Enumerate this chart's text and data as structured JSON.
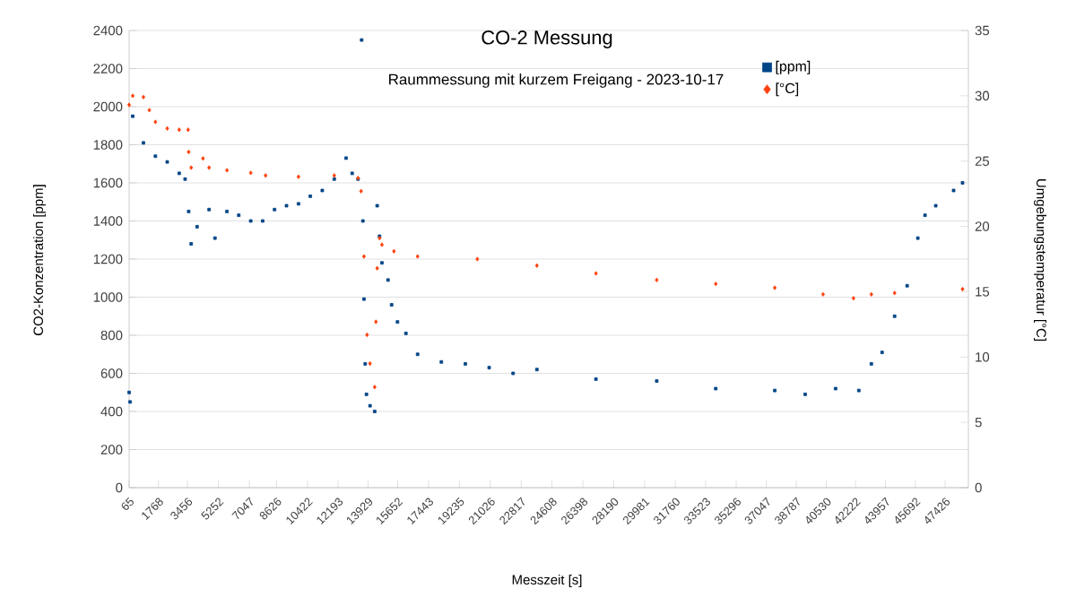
{
  "chart_data": {
    "type": "scatter",
    "title": "CO-2 Messung",
    "subtitle": "Raummessung mit kurzem Freigang - 2023-10-17",
    "xlabel": "Messzeit [s]",
    "ylabel": "CO2-Konzentration [ppm]",
    "y2label": "Umgebungstemperatur [°C]",
    "xlim": [
      65,
      48775
    ],
    "xticks": [
      65,
      1768,
      3456,
      5252,
      7047,
      8626,
      10422,
      12193,
      13929,
      15652,
      17443,
      19235,
      21026,
      22817,
      24608,
      26398,
      28190,
      29981,
      31760,
      33523,
      35296,
      37047,
      38787,
      40530,
      42222,
      43957,
      45692,
      47426
    ],
    "ylim": [
      0,
      2400
    ],
    "yticks": [
      0,
      200,
      400,
      600,
      800,
      1000,
      1200,
      1400,
      1600,
      1800,
      2000,
      2200,
      2400
    ],
    "y2lim": [
      0,
      35
    ],
    "y2ticks": [
      0,
      5,
      10,
      15,
      20,
      25,
      30,
      35
    ],
    "grid": "y",
    "legend": "top right",
    "series": [
      {
        "name": "[ppm]",
        "color": "#004586",
        "marker": "square",
        "axis": "y",
        "x": [
          65,
          120,
          273,
          895,
          1591,
          2276,
          2971,
          3314,
          3521,
          3667,
          4009,
          4705,
          5047,
          5743,
          6428,
          7123,
          7816,
          8504,
          9199,
          9895,
          10580,
          11275,
          11971,
          12656,
          13009,
          13351,
          13559,
          13632,
          13694,
          13767,
          13839,
          14047,
          14317,
          14462,
          14600,
          14738,
          15091,
          15299,
          15641,
          16129,
          16808,
          18189,
          19579,
          20960,
          22350,
          23731,
          27157,
          30686,
          34111,
          37537,
          39301,
          41066,
          42415,
          43142,
          43764,
          44491,
          45218,
          45840,
          46256,
          46878,
          47916,
          48434
        ],
        "values": [
          500,
          450,
          1950,
          1810,
          1740,
          1710,
          1650,
          1620,
          1450,
          1280,
          1370,
          1460,
          1310,
          1450,
          1430,
          1400,
          1400,
          1460,
          1480,
          1490,
          1530,
          1560,
          1620,
          1730,
          1650,
          1620,
          2350,
          1400,
          990,
          650,
          490,
          430,
          400,
          1480,
          1320,
          1180,
          1090,
          960,
          870,
          810,
          700,
          660,
          650,
          630,
          600,
          620,
          570,
          560,
          520,
          510,
          490,
          520,
          510,
          650,
          710,
          900,
          1060,
          1310,
          1430,
          1480,
          1560,
          1600
        ]
      },
      {
        "name": "[°C]",
        "color": "#ff420e",
        "marker": "diamond",
        "axis": "y2",
        "x": [
          65,
          273,
          895,
          1238,
          1591,
          2276,
          2971,
          3490,
          3521,
          3667,
          4352,
          4705,
          5743,
          7123,
          7985,
          9895,
          11971,
          13351,
          13527,
          13694,
          13870,
          14047,
          14317,
          14389,
          14462,
          14600,
          14738,
          15434,
          16808,
          20275,
          23731,
          27157,
          30686,
          34111,
          37537,
          40339,
          42104,
          43142,
          44491,
          48434
        ],
        "values": [
          29.3,
          30.0,
          29.9,
          28.9,
          28.0,
          27.5,
          27.4,
          27.4,
          25.7,
          24.5,
          25.2,
          24.5,
          24.3,
          24.1,
          23.9,
          23.8,
          23.9,
          23.7,
          22.7,
          17.7,
          11.7,
          9.5,
          7.7,
          12.7,
          16.8,
          19.1,
          18.6,
          18.1,
          17.7,
          17.5,
          17.0,
          16.4,
          15.9,
          15.6,
          15.3,
          14.8,
          14.5,
          14.8,
          14.9,
          15.2
        ]
      }
    ]
  }
}
